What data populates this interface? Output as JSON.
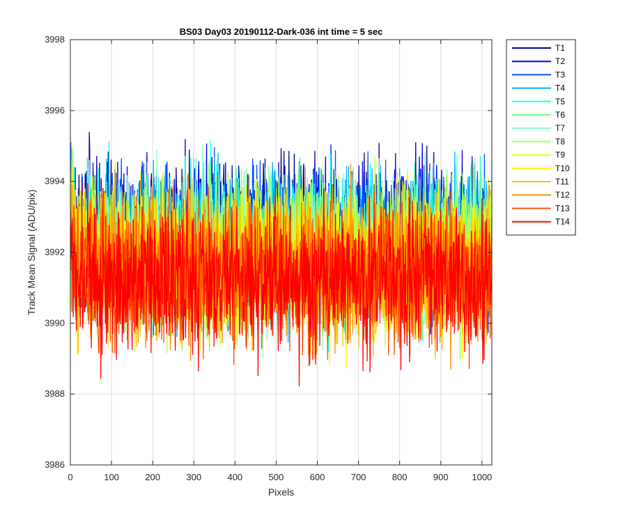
{
  "chart_data": {
    "type": "line",
    "title": "BS03 Day03 20190112-Dark-036 int time = 5 sec",
    "xlabel": "Pixels",
    "ylabel": "Track Mean Signal (ADU/pix)",
    "xlim": [
      0,
      1024
    ],
    "ylim": [
      3986,
      3998
    ],
    "xticks": [
      0,
      100,
      200,
      300,
      400,
      500,
      600,
      700,
      800,
      900,
      1000
    ],
    "yticks": [
      3986,
      3988,
      3990,
      3992,
      3994,
      3996,
      3998
    ],
    "grid": true,
    "legend_position": "outside-top-right",
    "series": [
      {
        "name": "T1",
        "color": "#00008F",
        "center": 3992.6,
        "spread": 1.0
      },
      {
        "name": "T2",
        "color": "#0000EF",
        "center": 3992.5,
        "spread": 1.0
      },
      {
        "name": "T3",
        "color": "#004FFF",
        "center": 3992.4,
        "spread": 1.0
      },
      {
        "name": "T4",
        "color": "#00AFFF",
        "center": 3992.3,
        "spread": 1.0
      },
      {
        "name": "T5",
        "color": "#0FFFEF",
        "center": 3992.2,
        "spread": 1.0
      },
      {
        "name": "T6",
        "color": "#6FFF8F",
        "center": 3992.1,
        "spread": 1.0
      },
      {
        "name": "T7",
        "color": "#80FFC8",
        "center": 3992.0,
        "spread": 1.0
      },
      {
        "name": "T8",
        "color": "#9FFF60",
        "center": 3991.9,
        "spread": 1.0
      },
      {
        "name": "T9",
        "color": "#CFFF30",
        "center": 3991.8,
        "spread": 1.0
      },
      {
        "name": "T10",
        "color": "#FFEF00",
        "center": 3991.7,
        "spread": 1.0
      },
      {
        "name": "T11",
        "color": "#FFBF00",
        "center": 3991.6,
        "spread": 1.0
      },
      {
        "name": "T12",
        "color": "#FF8F00",
        "center": 3991.5,
        "spread": 1.0
      },
      {
        "name": "T13",
        "color": "#FF5000",
        "center": 3991.4,
        "spread": 1.0
      },
      {
        "name": "T14",
        "color": "#FF0000",
        "center": 3991.2,
        "spread": 1.0
      }
    ]
  }
}
